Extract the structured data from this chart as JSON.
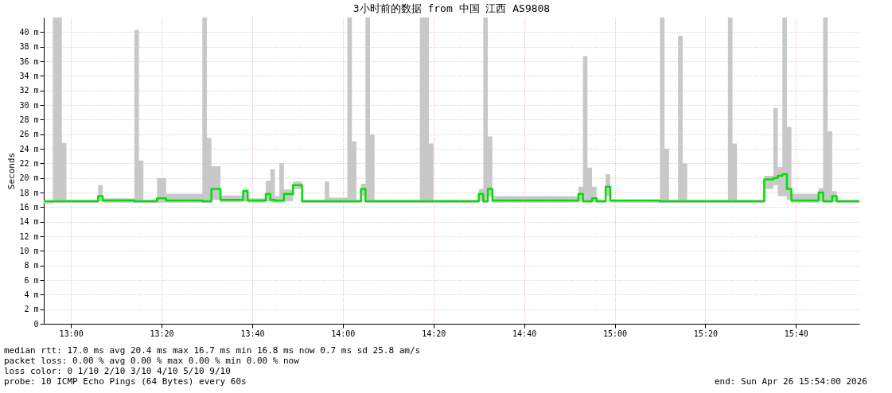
{
  "chart_data": {
    "type": "step",
    "title": "3小时前的数据 from 中国 江西 AS9808",
    "ylabel": "Seconds",
    "xlim": [
      "2026-04-26T12:54",
      "2026-04-26T15:54"
    ],
    "xticks": [
      {
        "value": "2026-04-26T13:00",
        "label": "13:00"
      },
      {
        "value": "2026-04-26T13:20",
        "label": "13:20"
      },
      {
        "value": "2026-04-26T13:40",
        "label": "13:40"
      },
      {
        "value": "2026-04-26T14:00",
        "label": "14:00"
      },
      {
        "value": "2026-04-26T14:20",
        "label": "14:20"
      },
      {
        "value": "2026-04-26T14:40",
        "label": "14:40"
      },
      {
        "value": "2026-04-26T15:00",
        "label": "15:00"
      },
      {
        "value": "2026-04-26T15:20",
        "label": "15:20"
      },
      {
        "value": "2026-04-26T15:40",
        "label": "15:40"
      }
    ],
    "ylim": [
      0,
      42
    ],
    "yticks": [
      0,
      {
        "value": 2,
        "label": "2 m"
      },
      {
        "value": 4,
        "label": "4 m"
      },
      {
        "value": 6,
        "label": "6 m"
      },
      {
        "value": 8,
        "label": "8 m"
      },
      {
        "value": 10,
        "label": "10 m"
      },
      {
        "value": 12,
        "label": "12 m"
      },
      {
        "value": 14,
        "label": "14 m"
      },
      {
        "value": 16,
        "label": "16 m"
      },
      {
        "value": 18,
        "label": "18 m"
      },
      {
        "value": 20,
        "label": "20 m"
      },
      {
        "value": 22,
        "label": "22 m"
      },
      {
        "value": 24,
        "label": "24 m"
      },
      {
        "value": 26,
        "label": "26 m"
      },
      {
        "value": 28,
        "label": "28 m"
      },
      {
        "value": 30,
        "label": "30 m"
      },
      {
        "value": 32,
        "label": "32 m"
      },
      {
        "value": 34,
        "label": "34 m"
      },
      {
        "value": 36,
        "label": "36 m"
      },
      {
        "value": 38,
        "label": "38 m"
      },
      {
        "value": 40,
        "label": "40 m"
      }
    ],
    "grid": true,
    "legend": false,
    "marker": "none",
    "line_style": "solid",
    "x": [
      "2026-04-26T12:54",
      "2026-04-26T12:56",
      "2026-04-26T12:58",
      "2026-04-26T12:59",
      "2026-04-26T13:06",
      "2026-04-26T13:07",
      "2026-04-26T13:14",
      "2026-04-26T13:15",
      "2026-04-26T13:16",
      "2026-04-26T13:19",
      "2026-04-26T13:21",
      "2026-04-26T13:29",
      "2026-04-26T13:30",
      "2026-04-26T13:31",
      "2026-04-26T13:33",
      "2026-04-26T13:38",
      "2026-04-26T13:39",
      "2026-04-26T13:43",
      "2026-04-26T13:44",
      "2026-04-26T13:45",
      "2026-04-26T13:46",
      "2026-04-26T13:47",
      "2026-04-26T13:49",
      "2026-04-26T13:51",
      "2026-04-26T13:56",
      "2026-04-26T13:57",
      "2026-04-26T14:01",
      "2026-04-26T14:02",
      "2026-04-26T14:03",
      "2026-04-26T14:04",
      "2026-04-26T14:05",
      "2026-04-26T14:06",
      "2026-04-26T14:07",
      "2026-04-26T14:17",
      "2026-04-26T14:19",
      "2026-04-26T14:20",
      "2026-04-26T14:30",
      "2026-04-26T14:31",
      "2026-04-26T14:32",
      "2026-04-26T14:33",
      "2026-04-26T14:52",
      "2026-04-26T14:53",
      "2026-04-26T14:54",
      "2026-04-26T14:55",
      "2026-04-26T14:56",
      "2026-04-26T14:58",
      "2026-04-26T14:59",
      "2026-04-26T15:10",
      "2026-04-26T15:11",
      "2026-04-26T15:12",
      "2026-04-26T15:14",
      "2026-04-26T15:15",
      "2026-04-26T15:16",
      "2026-04-26T15:25",
      "2026-04-26T15:26",
      "2026-04-26T15:27",
      "2026-04-26T15:33",
      "2026-04-26T15:35",
      "2026-04-26T15:36",
      "2026-04-26T15:37",
      "2026-04-26T15:38",
      "2026-04-26T15:39",
      "2026-04-26T15:45",
      "2026-04-26T15:46",
      "2026-04-26T15:47",
      "2026-04-26T15:48",
      "2026-04-26T15:49",
      "2026-04-26T15:54"
    ],
    "series": [
      {
        "color": "#00e000",
        "values": [
          16.8,
          16.8,
          16.8,
          16.8,
          17.5,
          16.9,
          16.8,
          16.8,
          16.8,
          17.2,
          16.9,
          16.8,
          16.8,
          18.5,
          17.0,
          18.2,
          16.9,
          17.8,
          17.0,
          16.9,
          16.9,
          17.8,
          19.0,
          16.8,
          16.8,
          16.8,
          16.8,
          16.8,
          16.8,
          18.5,
          16.8,
          16.8,
          16.8,
          16.8,
          16.8,
          16.8,
          17.8,
          16.8,
          18.5,
          16.9,
          17.8,
          16.8,
          16.8,
          17.2,
          16.8,
          18.8,
          16.9,
          16.8,
          16.8,
          16.8,
          16.8,
          16.8,
          16.8,
          16.8,
          16.8,
          16.8,
          19.8,
          20.0,
          20.3,
          20.5,
          18.5,
          16.9,
          18.0,
          16.8,
          16.8,
          17.5,
          16.8,
          16.8
        ],
        "lower": [
          16.5,
          16.6,
          16.6,
          16.6,
          16.8,
          16.6,
          16.6,
          16.6,
          16.6,
          16.6,
          16.6,
          16.6,
          16.6,
          17.0,
          16.7,
          16.8,
          16.6,
          16.8,
          16.6,
          16.6,
          16.6,
          16.8,
          18.5,
          16.6,
          16.6,
          16.6,
          16.6,
          16.6,
          16.6,
          17.5,
          16.6,
          16.6,
          16.6,
          16.6,
          16.6,
          16.6,
          16.8,
          16.6,
          17.5,
          16.6,
          16.8,
          16.6,
          16.6,
          16.7,
          16.6,
          17.5,
          16.6,
          16.6,
          16.6,
          16.6,
          16.6,
          16.6,
          16.6,
          16.6,
          16.6,
          16.6,
          18.5,
          19.0,
          17.5,
          17.5,
          17.0,
          16.6,
          16.8,
          16.6,
          16.6,
          16.7,
          16.6,
          16.6
        ],
        "upper": [
          16.9,
          42,
          24.8,
          17.0,
          19.0,
          17.2,
          40.3,
          22.4,
          17.0,
          20.0,
          17.8,
          42,
          25.5,
          21.6,
          17.6,
          18.5,
          17.2,
          19.6,
          21.2,
          17.5,
          22.0,
          18.4,
          19.5,
          17.0,
          19.5,
          17.3,
          42,
          25.0,
          17.0,
          19.2,
          42,
          26.0,
          17.0,
          42,
          24.7,
          17.0,
          18.5,
          42,
          25.7,
          17.5,
          18.8,
          36.7,
          21.4,
          18.8,
          17.0,
          20.5,
          17.0,
          42,
          24.0,
          17.0,
          39.5,
          22.0,
          17.0,
          42,
          24.7,
          17.0,
          20.3,
          29.6,
          21.5,
          42,
          27.0,
          17.8,
          18.6,
          42,
          26.4,
          18.2,
          17.0,
          17.0
        ]
      }
    ],
    "annotations": [
      "median rtt:  17.0 ms avg  20.4 ms max  16.7 ms min  16.8 ms now  0.7 ms sd  25.8   am/s",
      "packet loss: 0.00 % avg  0.00 % max  0.00 % min  0.00 % now",
      "loss color:  0  1/10  2/10  3/10  4/10  5/10  9/10",
      "probe:       10 ICMP Echo Pings (64 Bytes) every 60s",
      "end: Sun Apr 26 15:54:00 2026"
    ]
  }
}
